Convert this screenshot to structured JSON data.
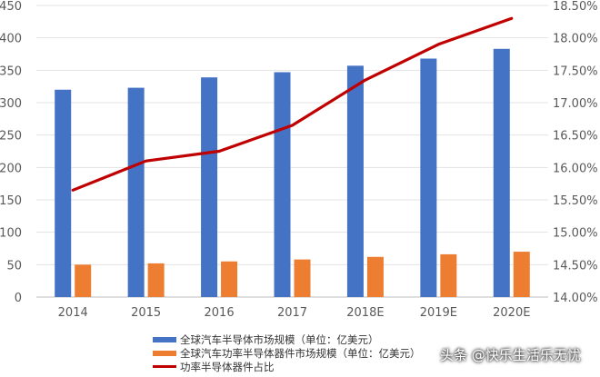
{
  "chart_data": {
    "type": "bar",
    "categories": [
      "2014",
      "2015",
      "2016",
      "2017",
      "2018E",
      "2019E",
      "2020E"
    ],
    "series": [
      {
        "name": "全球汽车半导体市场规模（单位：亿美元）",
        "type": "bar",
        "axis": "left",
        "values": [
          320,
          323,
          339,
          347,
          357,
          368,
          383
        ],
        "color": "#4472C4"
      },
      {
        "name": "全球汽车功率半导体器件市场规模（单位：亿美元）",
        "type": "bar",
        "axis": "left",
        "values": [
          50,
          52,
          55,
          58,
          62,
          66,
          70
        ],
        "color": "#ED7D31"
      },
      {
        "name": "功率半导体器件占比",
        "type": "line",
        "axis": "right",
        "values": [
          15.65,
          16.1,
          16.25,
          16.65,
          17.35,
          17.9,
          18.3
        ],
        "color": "#C00000"
      }
    ],
    "yaxis_left": {
      "min": 0,
      "max": 450,
      "ticks": [
        "0",
        "50",
        "100",
        "150",
        "200",
        "250",
        "300",
        "350",
        "400",
        "450"
      ]
    },
    "yaxis_right": {
      "min": 14.0,
      "max": 18.5,
      "ticks": [
        "14.00%",
        "14.50%",
        "15.00%",
        "15.50%",
        "16.00%",
        "16.50%",
        "17.00%",
        "17.50%",
        "18.00%",
        "18.50%"
      ]
    },
    "legend_position": "bottom-left",
    "grid": true
  },
  "legend": {
    "items": [
      {
        "label": "全球汽车半导体市场规模（单位：亿美元）",
        "color": "#4472C4",
        "kind": "bar"
      },
      {
        "label": "全球汽车功率半导体器件市场规模（单位：亿美元）",
        "color": "#ED7D31",
        "kind": "bar"
      },
      {
        "label": "功率半导体器件占比",
        "color": "#C00000",
        "kind": "line"
      }
    ]
  },
  "watermark": {
    "text": "头条 @快乐生活乐无忧"
  }
}
